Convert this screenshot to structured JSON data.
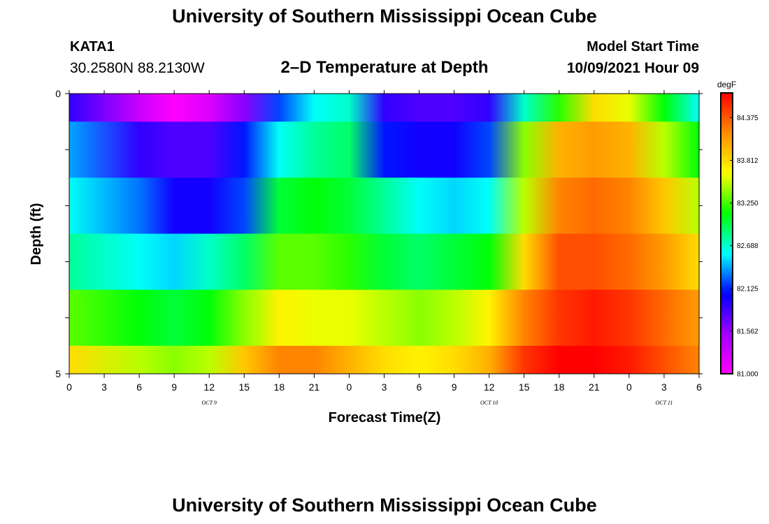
{
  "header": {
    "title": "University of Southern Mississippi Ocean Cube",
    "station": "KATA1",
    "coords": "30.2580N  88.2130W",
    "chart_title": "2–D Temperature at Depth",
    "model_start_label": "Model Start Time",
    "model_start_value": "10/09/2021 Hour 09"
  },
  "footer": {
    "title": "University of Southern Mississippi Ocean Cube"
  },
  "chart_data": {
    "type": "heatmap",
    "title": "2–D Temperature at Depth",
    "xlabel": "Forecast Time(Z)",
    "ylabel": "Depth (ft)",
    "x_ticks": [
      "0",
      "3",
      "6",
      "9",
      "12",
      "15",
      "18",
      "21",
      "0",
      "3",
      "6",
      "9",
      "12",
      "15",
      "18",
      "21",
      "0",
      "3",
      "6"
    ],
    "y_ticks": [
      "0",
      "5"
    ],
    "ylim": [
      0,
      5
    ],
    "date_labels": [
      {
        "text": "OCT 9",
        "at_tick": 4
      },
      {
        "text": "OCT 10",
        "at_tick": 12
      },
      {
        "text": "OCT 11",
        "at_tick": 17
      }
    ],
    "colorbar": {
      "unit": "degF",
      "ticks": [
        "81.000",
        "81.562",
        "82.125",
        "82.688",
        "83.250",
        "83.812",
        "84.375"
      ],
      "min": 81.0,
      "max": 84.7,
      "colors": [
        "#ff00ff",
        "#a000ff",
        "#0000ff",
        "#00ffff",
        "#00ff00",
        "#ffff00",
        "#ff8c00",
        "#ff0000"
      ]
    },
    "forecast_hours": [
      0,
      6,
      9,
      12,
      15,
      18,
      21,
      24,
      27,
      30,
      33,
      36,
      39,
      42,
      45,
      48,
      51,
      54
    ],
    "rows": [
      {
        "depth_band": [
          0,
          0.5
        ],
        "values": [
          81.9,
          81.3,
          81.0,
          81.2,
          81.6,
          82.2,
          82.6,
          82.7,
          81.9,
          81.8,
          81.8,
          81.9,
          82.7,
          83.2,
          83.8,
          83.6,
          83.1,
          82.6
        ]
      },
      {
        "depth_band": [
          0.5,
          1.5
        ],
        "values": [
          82.4,
          81.9,
          81.8,
          81.8,
          82.1,
          82.6,
          82.8,
          82.9,
          82.1,
          82.0,
          82.0,
          82.2,
          83.4,
          84.0,
          84.1,
          84.0,
          83.5,
          83.1
        ]
      },
      {
        "depth_band": [
          1.5,
          2.5
        ],
        "values": [
          82.6,
          82.3,
          82.0,
          82.0,
          82.2,
          83.0,
          83.1,
          83.0,
          82.8,
          82.6,
          82.5,
          82.6,
          83.5,
          84.2,
          84.3,
          84.2,
          83.9,
          83.5
        ]
      },
      {
        "depth_band": [
          2.5,
          3.5
        ],
        "values": [
          82.8,
          82.6,
          82.5,
          82.7,
          82.9,
          83.3,
          83.3,
          83.2,
          83.0,
          82.9,
          83.0,
          83.1,
          83.8,
          84.4,
          84.4,
          84.3,
          84.1,
          83.8
        ]
      },
      {
        "depth_band": [
          3.5,
          4.5
        ],
        "values": [
          83.3,
          83.1,
          83.0,
          83.1,
          83.4,
          83.7,
          83.6,
          83.6,
          83.5,
          83.4,
          83.5,
          83.7,
          84.2,
          84.5,
          84.6,
          84.5,
          84.3,
          84.1
        ]
      },
      {
        "depth_band": [
          4.5,
          5.0
        ],
        "values": [
          83.8,
          83.5,
          83.4,
          83.5,
          83.9,
          84.2,
          84.2,
          84.0,
          83.8,
          83.7,
          83.8,
          84.0,
          84.5,
          84.7,
          84.7,
          84.6,
          84.4,
          84.2
        ]
      }
    ]
  }
}
